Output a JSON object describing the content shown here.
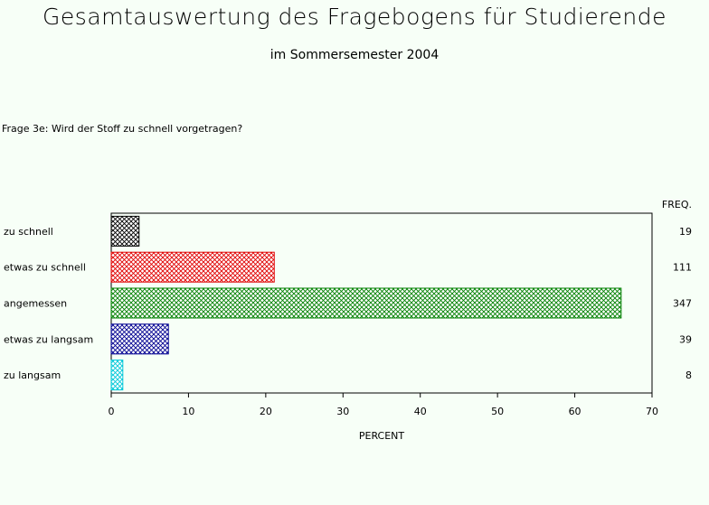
{
  "header": {
    "title": "Gesamtauswertung des Fragebogens für Studierende",
    "subtitle": "im Sommersemester 2004"
  },
  "question": "Frage 3e: Wird der Stoff zu schnell vorgetragen?",
  "chart_data": {
    "type": "bar",
    "orientation": "horizontal",
    "categories": [
      "zu schnell",
      "etwas zu schnell",
      "angemessen",
      "etwas zu langsam",
      "zu langsam"
    ],
    "values": [
      3.6,
      21.1,
      66.0,
      7.4,
      1.5
    ],
    "freq_header": "FREQ.",
    "freq": [
      "19",
      "111",
      "347",
      "39",
      "8"
    ],
    "colors": [
      "#000000",
      "#e00000",
      "#008000",
      "#000090",
      "#00c8d8"
    ],
    "fill_pattern": "crosshatch",
    "xlabel": "PERCENT",
    "xlim": [
      0,
      70
    ],
    "xticks": [
      0,
      10,
      20,
      30,
      40,
      50,
      60,
      70
    ],
    "grid": false
  }
}
